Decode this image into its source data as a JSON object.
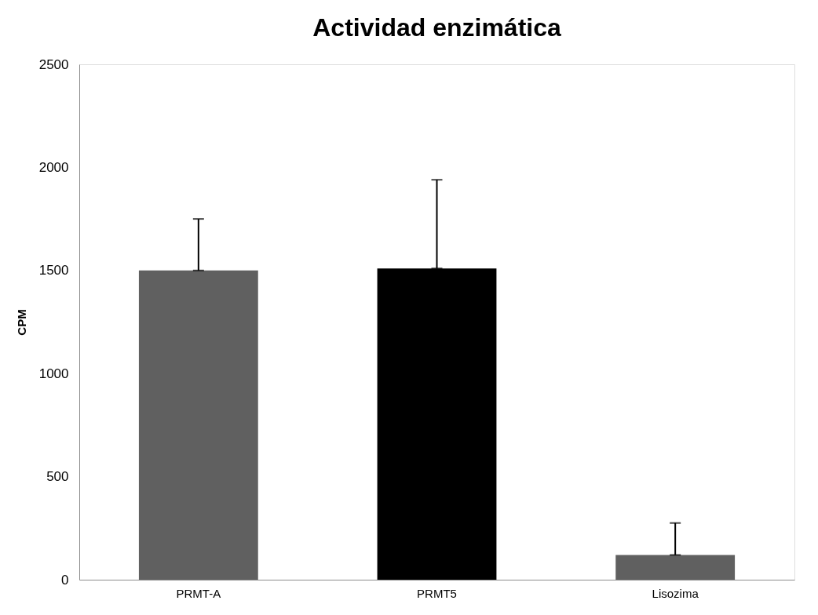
{
  "chart_data": {
    "type": "bar",
    "title": "Actividad enzimática",
    "ylabel": "CPM",
    "categories": [
      "PRMT-A",
      "PRMT5",
      "Lisozima"
    ],
    "values": [
      1500,
      1510,
      120
    ],
    "colors": [
      "#606060",
      "#000000",
      "#606060"
    ],
    "errors": [
      [
        1500,
        1750
      ],
      [
        1510,
        1940
      ],
      [
        120,
        275
      ]
    ],
    "ylim": [
      0,
      2500
    ],
    "yticks": [
      0,
      500,
      1000,
      1500,
      2000,
      2500
    ],
    "grid": false
  }
}
